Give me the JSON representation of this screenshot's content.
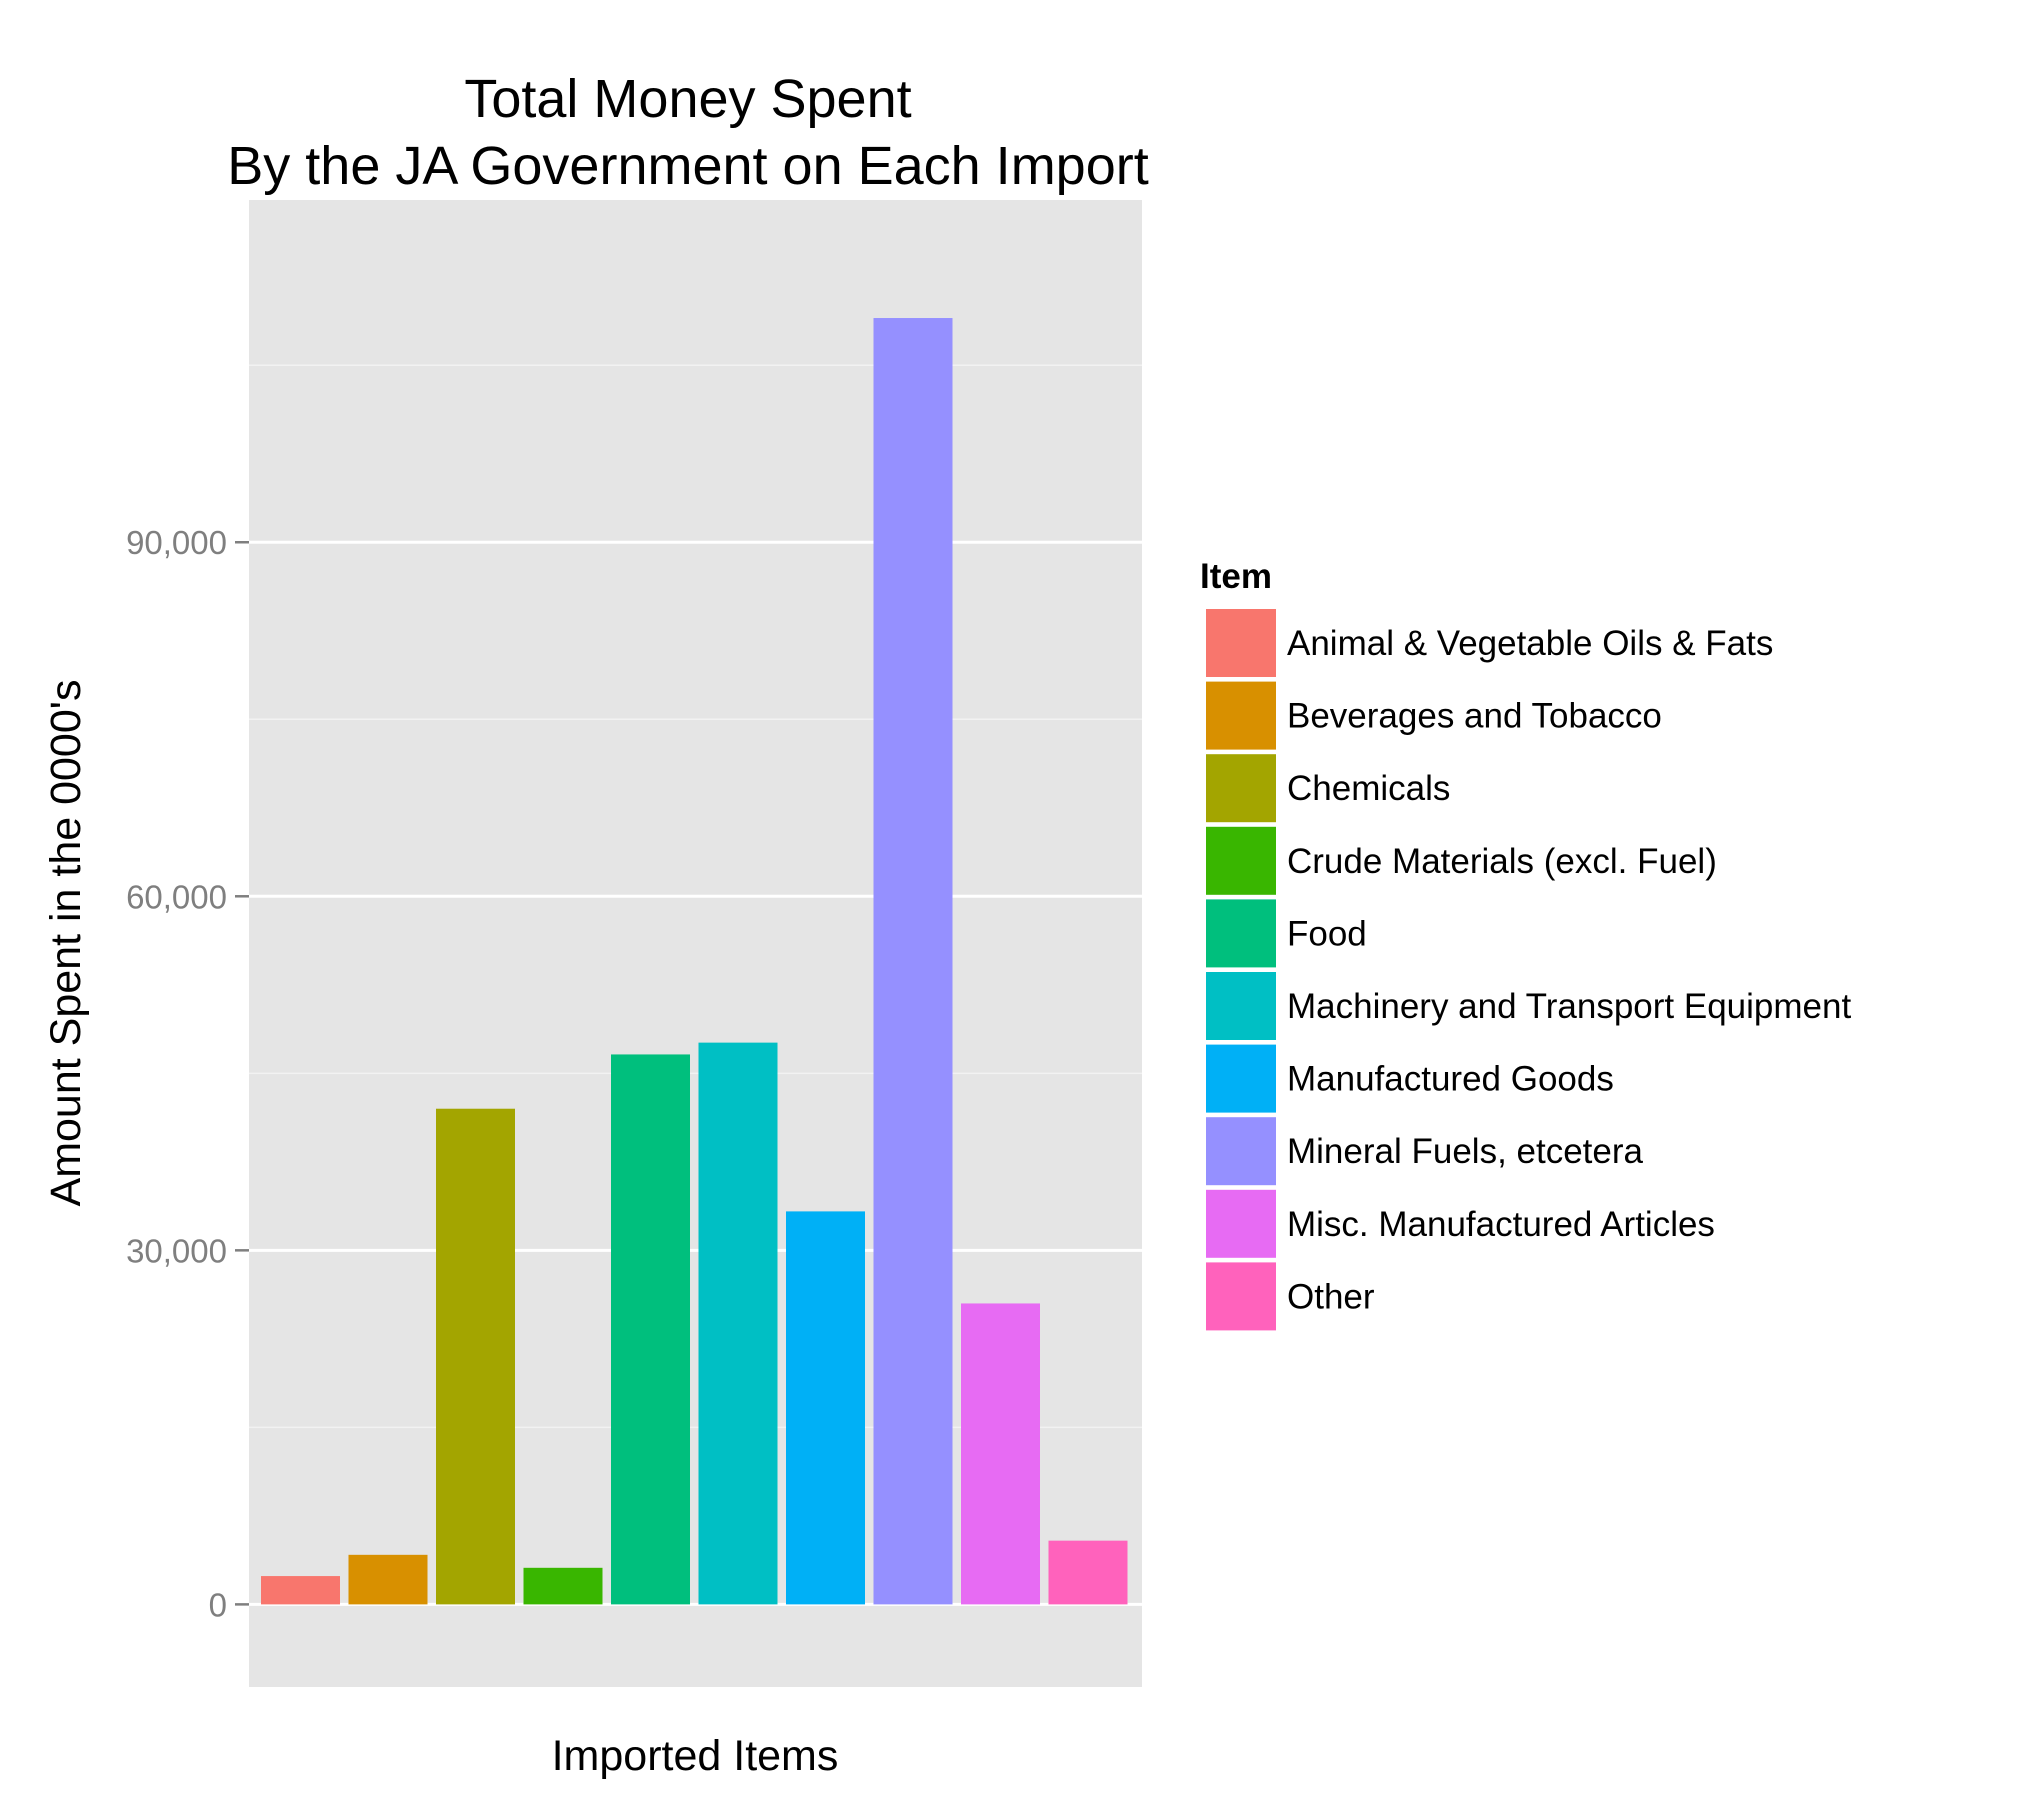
{
  "chart_data": {
    "type": "bar",
    "title": "Total Money Spent",
    "subtitle": "By the JA Government on Each Import",
    "xlabel": "Imported Items",
    "ylabel": "Amount Spent in the 0000's",
    "ylim": [
      -7000,
      119000
    ],
    "yticks": [
      0,
      30000,
      60000,
      90000
    ],
    "ytick_labels": [
      "0",
      "30,000",
      "60,000",
      "90,000"
    ],
    "grid": true,
    "legend_title": "Item",
    "legend_position": "right",
    "categories": [
      "Animal & Vegetable Oils & Fats",
      "Beverages and Tobacco",
      "Chemicals",
      "Crude Materials (excl. Fuel)",
      "Food",
      "Machinery and Transport Equipment",
      "Manufactured Goods",
      "Mineral Fuels, etcetera",
      "Misc. Manufactured Articles",
      "Other"
    ],
    "values": [
      2400,
      4200,
      42000,
      3100,
      46600,
      47600,
      33300,
      109000,
      25500,
      5400
    ],
    "colors": [
      "#F8766D",
      "#D89000",
      "#A3A500",
      "#39B600",
      "#00BF7D",
      "#00BFC4",
      "#00B0F6",
      "#9590FF",
      "#E76BF3",
      "#FF62BC"
    ]
  }
}
